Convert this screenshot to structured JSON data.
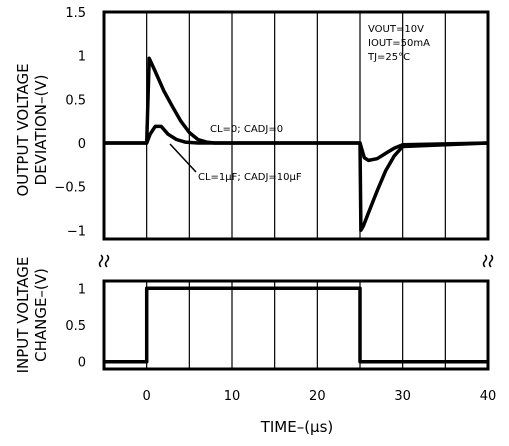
{
  "chart_data": [
    {
      "type": "line",
      "panel": "top",
      "ylabel_line1": "OUTPUT VOLTAGE",
      "ylabel_line2": "DEVIATION–(V)",
      "xlim": [
        -5,
        40
      ],
      "ylim": [
        -1.1,
        1.5
      ],
      "yticks": [
        1.5,
        1,
        0.5,
        0,
        -0.5,
        -1
      ],
      "ytick_labels": [
        "1.5",
        "1",
        "0.5",
        "0",
        "−0.5",
        "−1"
      ],
      "grid": true,
      "conditions": [
        "VOUT=10V",
        "IOUT=50mA",
        "TJ=25°C"
      ],
      "series": [
        {
          "name": "CL=0; CADJ=0",
          "annotation": "CL=0;  CADJ=0",
          "x": [
            -5,
            0,
            0.3,
            1,
            2,
            3,
            4,
            5,
            6,
            7,
            8,
            25,
            25.1,
            25.4,
            26,
            27,
            28,
            29,
            30,
            40
          ],
          "y": [
            0,
            0,
            0.97,
            0.82,
            0.6,
            0.42,
            0.25,
            0.12,
            0.04,
            0.01,
            0,
            0,
            -1.0,
            -0.95,
            -0.8,
            -0.55,
            -0.32,
            -0.15,
            -0.04,
            0
          ]
        },
        {
          "name": "CL=1μF; CADJ=10μF",
          "annotation": "CL=1μF;  CADJ=10μF",
          "x": [
            -5,
            0,
            0.4,
            1,
            1.7,
            2.5,
            3.5,
            4.5,
            6,
            25,
            25.5,
            26,
            27,
            28,
            29,
            30,
            40
          ],
          "y": [
            0,
            0,
            0.1,
            0.19,
            0.19,
            0.1,
            0.04,
            0.01,
            0,
            0,
            -0.17,
            -0.2,
            -0.18,
            -0.12,
            -0.06,
            -0.02,
            0
          ]
        }
      ]
    },
    {
      "type": "line",
      "panel": "bottom",
      "ylabel_line1": "INPUT VOLTAGE",
      "ylabel_line2": "CHANGE–(V)",
      "xlim": [
        -5,
        40
      ],
      "ylim": [
        -0.1,
        1.1
      ],
      "yticks": [
        1,
        0.5,
        0
      ],
      "ytick_labels": [
        "1",
        "0.5",
        "0"
      ],
      "xticks": [
        0,
        10,
        20,
        30,
        40
      ],
      "xtick_labels": [
        "0",
        "10",
        "20",
        "30",
        "40"
      ],
      "xlabel": "TIME–(μs)",
      "grid": true,
      "series": [
        {
          "x": [
            -5,
            0,
            0,
            25,
            25,
            40
          ],
          "y": [
            0,
            0,
            1,
            1,
            0,
            0
          ]
        }
      ]
    }
  ]
}
